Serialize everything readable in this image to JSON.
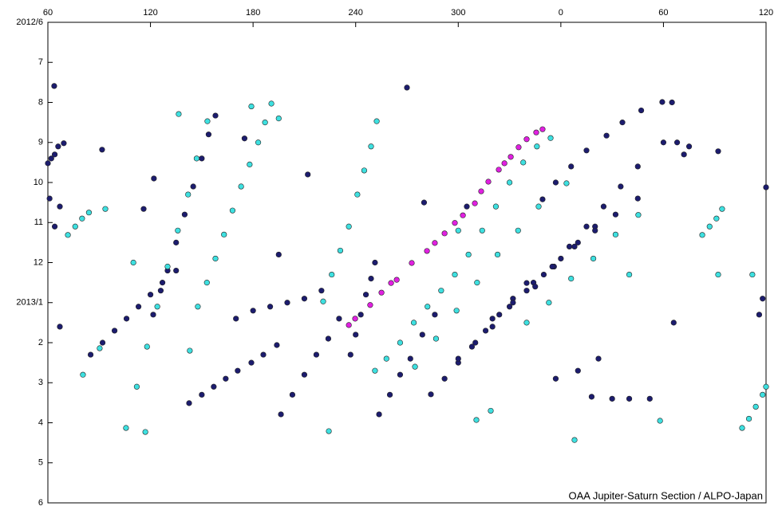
{
  "chart_data": {
    "type": "scatter",
    "annotation": "OAA Jupiter-Saturn Section / ALPO-Japan",
    "xlim": [
      60,
      480
    ],
    "ylim": [
      0,
      12
    ],
    "y_reversed": true,
    "x_axis_side": "top",
    "xticks": [
      60,
      120,
      180,
      240,
      300,
      {
        "value": 360,
        "label": "0"
      },
      {
        "value": 420,
        "label": "60"
      },
      {
        "value": 480,
        "label": "120"
      }
    ],
    "yticks": [
      {
        "value": 0,
        "label": "2012/6"
      },
      {
        "value": 1,
        "label": "7"
      },
      {
        "value": 2,
        "label": "8"
      },
      {
        "value": 3,
        "label": "9"
      },
      {
        "value": 4,
        "label": "10"
      },
      {
        "value": 5,
        "label": "11"
      },
      {
        "value": 6,
        "label": "12"
      },
      {
        "value": 7,
        "label": "2013/1"
      },
      {
        "value": 8,
        "label": "2"
      },
      {
        "value": 9,
        "label": "3"
      },
      {
        "value": 10,
        "label": "4"
      },
      {
        "value": 11,
        "label": "5"
      },
      {
        "value": 12,
        "label": "6"
      }
    ],
    "series": [
      {
        "color": "#1c1c6e",
        "x": [
          60,
          62,
          64,
          66,
          69.3,
          63.7,
          61,
          64,
          67,
          85,
          92,
          99,
          106,
          113,
          120,
          127,
          135,
          121.6,
          126,
          130,
          135,
          140,
          145,
          150,
          154,
          158,
          142.6,
          150,
          157,
          164,
          171,
          179,
          186,
          193.9,
          196.3,
          203,
          210,
          217,
          224,
          230.3,
          170,
          180,
          190,
          200,
          210,
          220,
          237,
          240,
          243,
          246,
          249,
          251.3,
          253.7,
          260,
          266,
          272,
          279,
          286.3,
          284,
          292,
          300,
          308,
          316,
          324,
          332,
          340,
          300,
          310,
          320,
          330,
          340,
          350,
          360,
          370,
          380,
          320,
          332,
          344,
          356,
          368,
          380,
          392,
          405,
          345,
          355,
          365,
          375,
          385,
          395,
          405,
          420,
          349.3,
          357,
          366,
          375,
          386.7,
          396,
          407,
          419.3,
          425,
          428,
          432,
          435,
          270,
          91.7,
          116,
          280,
          305,
          378,
          390,
          400,
          412,
          452,
          480,
          478,
          476,
          426,
          122,
          175,
          195,
          212,
          357,
          370,
          382,
          67
        ],
        "values": [
          3.52,
          3.4,
          3.3,
          3.1,
          3.02,
          1.59,
          4.4,
          5.1,
          4.6,
          8.3,
          8.0,
          7.7,
          7.4,
          7.1,
          6.8,
          6.5,
          6.2,
          7.3,
          6.7,
          6.2,
          5.5,
          4.8,
          4.1,
          3.4,
          2.8,
          2.33,
          9.51,
          9.3,
          9.1,
          8.9,
          8.7,
          8.5,
          8.3,
          8.06,
          9.79,
          9.3,
          8.8,
          8.3,
          7.9,
          7.4,
          7.4,
          7.2,
          7.1,
          7.0,
          6.9,
          6.7,
          8.3,
          7.8,
          7.3,
          6.8,
          6.4,
          6.0,
          9.79,
          9.3,
          8.8,
          8.4,
          7.8,
          7.3,
          9.29,
          8.9,
          8.5,
          8.1,
          7.7,
          7.3,
          6.9,
          6.51,
          8.4,
          8.0,
          7.6,
          7.1,
          6.7,
          6.3,
          5.9,
          5.5,
          5.1,
          7.4,
          7.0,
          6.5,
          6.1,
          5.6,
          5.2,
          4.8,
          4.4,
          6.6,
          6.1,
          5.6,
          5.1,
          4.6,
          4.1,
          3.6,
          3.0,
          4.42,
          4.0,
          3.6,
          3.2,
          2.83,
          2.5,
          2.2,
          1.99,
          2.0,
          3.0,
          3.3,
          3.1,
          1.63,
          3.18,
          4.66,
          4.5,
          4.6,
          9.35,
          9.4,
          9.4,
          9.4,
          3.22,
          4.12,
          6.9,
          7.3,
          7.5,
          3.9,
          2.9,
          5.8,
          3.8,
          8.9,
          8.7,
          8.4,
          7.6
        ]
      },
      {
        "color": "#3ee0e0",
        "x": [
          105.7,
          112,
          118,
          124,
          130,
          136,
          142,
          147,
          153.3,
          147.7,
          153,
          158,
          163,
          168,
          173,
          178,
          183,
          187,
          190.7,
          221,
          226,
          231,
          236,
          241,
          245,
          249,
          252.3,
          251.3,
          258,
          266,
          274,
          282,
          290,
          298,
          306,
          314,
          322,
          330,
          338,
          346,
          354,
          274.7,
          287,
          299,
          311,
          323,
          335,
          347,
          363.3,
          340,
          353,
          366,
          379,
          392,
          405.3,
          71.7,
          76,
          80,
          84,
          93.6,
          442.7,
          447,
          451,
          454.3,
          466,
          470,
          474,
          478,
          480,
          136.5,
          117,
          224.3,
          310.6,
          319,
          368,
          80.5,
          90.3,
          110,
          143,
          418,
          179,
          195,
          300,
          400,
          452,
          472
        ],
        "values": [
          10.13,
          9.1,
          8.1,
          7.1,
          6.1,
          5.2,
          4.3,
          3.4,
          2.47,
          7.1,
          6.5,
          5.9,
          5.3,
          4.7,
          4.1,
          3.55,
          3.0,
          2.5,
          2.03,
          6.97,
          6.3,
          5.7,
          5.1,
          4.3,
          3.7,
          3.1,
          2.47,
          8.7,
          8.4,
          8.0,
          7.5,
          7.1,
          6.7,
          6.3,
          5.8,
          5.2,
          4.6,
          4.0,
          3.5,
          3.1,
          2.89,
          8.6,
          7.9,
          7.2,
          6.5,
          5.8,
          5.2,
          4.6,
          4.02,
          7.5,
          7.0,
          6.4,
          5.9,
          5.3,
          4.81,
          5.31,
          5.1,
          4.9,
          4.75,
          4.66,
          5.31,
          5.1,
          4.9,
          4.66,
          10.13,
          9.9,
          9.6,
          9.3,
          9.1,
          2.29,
          10.23,
          10.21,
          9.93,
          9.7,
          10.43,
          8.8,
          8.14,
          6.0,
          8.2,
          9.95,
          2.1,
          2.4,
          5.2,
          6.3,
          6.3,
          6.3
        ]
      },
      {
        "color": "#e020e0",
        "x": [
          236,
          239.7,
          248.5,
          255.1,
          260.7,
          264,
          272.8,
          281.7,
          286.3,
          292,
          298,
          302.7,
          309.7,
          313.4,
          317.6,
          323.7,
          327,
          330.7,
          335.3,
          340,
          345.6,
          349.3
        ],
        "values": [
          7.56,
          7.4,
          7.06,
          6.75,
          6.51,
          6.43,
          6.01,
          5.71,
          5.51,
          5.27,
          5.01,
          4.82,
          4.52,
          4.22,
          3.98,
          3.68,
          3.52,
          3.36,
          3.12,
          2.92,
          2.75,
          2.67
        ]
      }
    ]
  }
}
